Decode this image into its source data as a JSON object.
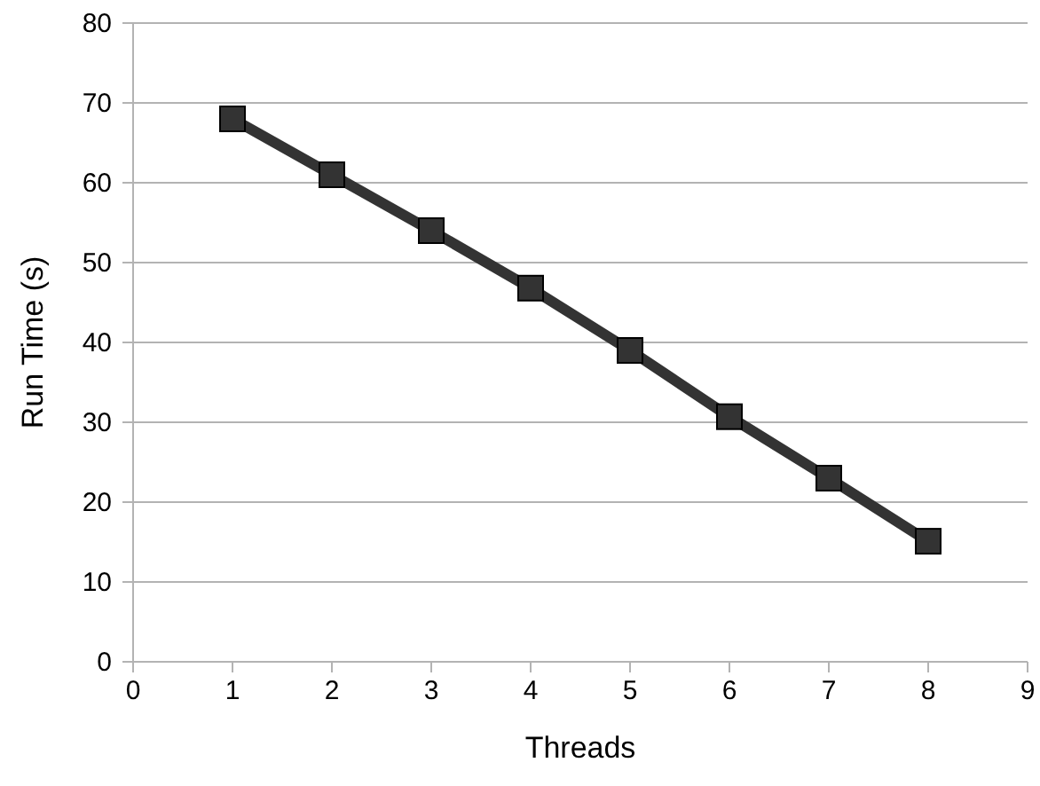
{
  "chart_data": {
    "type": "line",
    "xlabel": "Threads",
    "ylabel": "Run Time (s)",
    "x": [
      1,
      2,
      3,
      4,
      5,
      6,
      7,
      8
    ],
    "series": [
      {
        "color": "#333333",
        "values": [
          68,
          61,
          54,
          46.8,
          39,
          30.7,
          23,
          15.1
        ]
      }
    ],
    "xlim": [
      0,
      9
    ],
    "xticks": [
      0,
      1,
      2,
      3,
      4,
      5,
      6,
      7,
      8,
      9
    ],
    "ylim": [
      0,
      80
    ],
    "yticks": [
      0,
      10,
      20,
      30,
      40,
      50,
      60,
      70,
      80
    ],
    "grid": "y",
    "marker": "square",
    "line_style": "solid"
  }
}
